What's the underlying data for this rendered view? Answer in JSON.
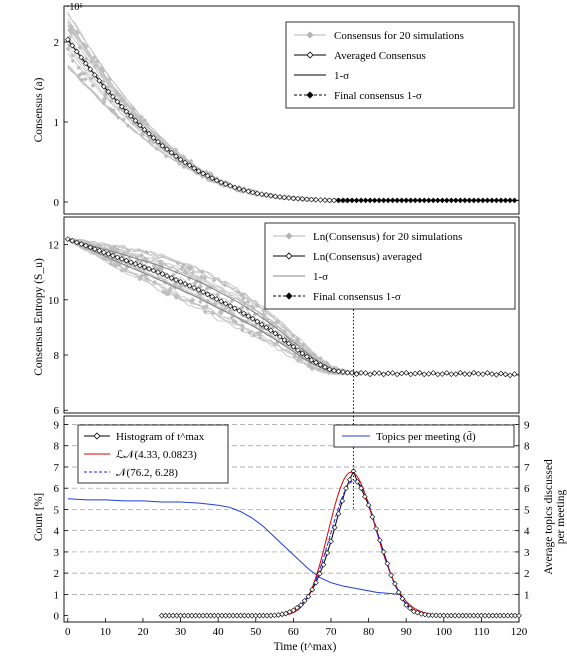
{
  "chart_data": [
    {
      "type": "line",
      "ylabel": "Consensus (a)",
      "y_exponent": "·10⁵",
      "xlim": [
        -1,
        120
      ],
      "ylim": [
        -0.15,
        2.45
      ],
      "yticks": [
        "0",
        "1",
        "2"
      ],
      "legend_position": "top-right",
      "series": [
        {
          "name": "Consensus for 20 simulations",
          "color": "#b5b5b5",
          "marker": "diamond",
          "style": "band"
        },
        {
          "name": "Averaged Consensus",
          "color": "#000000",
          "marker": "diamond-open",
          "style": "line-markers"
        },
        {
          "name": "1-σ",
          "color": "#000000",
          "style": "line"
        },
        {
          "name": "Final consensus 1-σ",
          "color": "#000000",
          "marker": "diamond",
          "style": "dashed"
        }
      ],
      "averaged_curve": {
        "x": [
          0,
          5,
          10,
          15,
          20,
          25,
          30,
          35,
          40,
          45,
          50,
          55,
          60,
          65,
          70,
          75,
          80,
          90,
          100,
          110,
          120
        ],
        "y": [
          2.03,
          1.72,
          1.42,
          1.16,
          0.92,
          0.71,
          0.53,
          0.38,
          0.26,
          0.17,
          0.11,
          0.07,
          0.045,
          0.03,
          0.02,
          0.02,
          0.02,
          0.02,
          0.02,
          0.02,
          0.02
        ]
      }
    },
    {
      "type": "line",
      "ylabel": "Consensus Entropy (S_u)",
      "xlim": [
        -1,
        120
      ],
      "ylim": [
        5.9,
        13.0
      ],
      "yticks": [
        "6",
        "8",
        "10",
        "12"
      ],
      "legend_position": "top-right",
      "series": [
        {
          "name": "Ln(Consensus) for 20 simulations",
          "color": "#b5b5b5",
          "marker": "diamond",
          "style": "band"
        },
        {
          "name": "Ln(Consensus) averaged",
          "color": "#000000",
          "marker": "diamond-open",
          "style": "line-markers"
        },
        {
          "name": "1-σ",
          "color": "#888888",
          "style": "line"
        },
        {
          "name": "Final consensus 1-σ",
          "color": "#000000",
          "marker": "diamond",
          "style": "dashed"
        }
      ],
      "averaged_curve": {
        "x": [
          0,
          5,
          10,
          15,
          20,
          25,
          30,
          35,
          40,
          45,
          50,
          55,
          60,
          65,
          70,
          75,
          80,
          90,
          100,
          110,
          120
        ],
        "y": [
          12.2,
          11.95,
          11.7,
          11.45,
          11.2,
          10.95,
          10.65,
          10.35,
          10.0,
          9.65,
          9.25,
          8.8,
          8.3,
          7.8,
          7.45,
          7.35,
          7.33,
          7.33,
          7.32,
          7.33,
          7.28
        ]
      },
      "vline_x": 76
    },
    {
      "type": "line",
      "xlabel": "Time (t^max)",
      "ylabel_left": "Count [%]",
      "ylabel_right_line1": "Average topics discussed",
      "ylabel_right_line2": "per meeting",
      "xlim": [
        -1,
        120
      ],
      "ylim": [
        -0.3,
        9.4
      ],
      "yticks": [
        "0",
        "1",
        "2",
        "3",
        "4",
        "5",
        "6",
        "7",
        "8",
        "9"
      ],
      "xticks": [
        "0",
        "10",
        "20",
        "30",
        "40",
        "50",
        "60",
        "70",
        "80",
        "90",
        "100",
        "110",
        "120"
      ],
      "legend_left": [
        {
          "name": "Histogram of t^max",
          "color": "#000000",
          "marker": "diamond-open"
        },
        {
          "name": "ℒ𝒩(4.33, 0.0823)",
          "color": "#e00000",
          "style": "solid"
        },
        {
          "name": "𝒩(76.2, 6.28)",
          "color": "#2222ff",
          "style": "dashed"
        }
      ],
      "legend_right": [
        {
          "name": "Topics per meeting (d̄)",
          "color": "#1f3fd6",
          "style": "solid"
        }
      ],
      "histogram": {
        "x": [
          25,
          30,
          35,
          40,
          45,
          50,
          54,
          56,
          58,
          60,
          62,
          64,
          66,
          68,
          70,
          72,
          74,
          75,
          76,
          77,
          78,
          80,
          82,
          84,
          86,
          88,
          90,
          92,
          94,
          96,
          98,
          100,
          102,
          104,
          106,
          108,
          110,
          115,
          120
        ],
        "y": [
          0,
          0,
          0,
          0,
          0,
          0,
          0,
          0.03,
          0.1,
          0.25,
          0.5,
          0.9,
          1.55,
          2.4,
          3.5,
          4.8,
          6.0,
          6.4,
          6.8,
          6.3,
          6.0,
          5.2,
          4.1,
          3.0,
          1.9,
          1.1,
          0.5,
          0.2,
          0.08,
          0.02,
          0.01,
          0,
          0,
          0,
          0,
          0,
          0,
          0,
          0
        ]
      },
      "topics_per_meeting": {
        "x": [
          0,
          5,
          10,
          15,
          20,
          25,
          30,
          35,
          40,
          43,
          46,
          49,
          52,
          55,
          58,
          61,
          64,
          67,
          70,
          73,
          76,
          79,
          82,
          85,
          88
        ],
        "y": [
          5.5,
          5.45,
          5.45,
          5.4,
          5.4,
          5.35,
          5.35,
          5.3,
          5.2,
          5.1,
          4.9,
          4.6,
          4.2,
          3.7,
          3.2,
          2.7,
          2.2,
          1.8,
          1.55,
          1.4,
          1.3,
          1.2,
          1.1,
          1.05,
          1.0
        ]
      },
      "vline_x": 76
    }
  ]
}
